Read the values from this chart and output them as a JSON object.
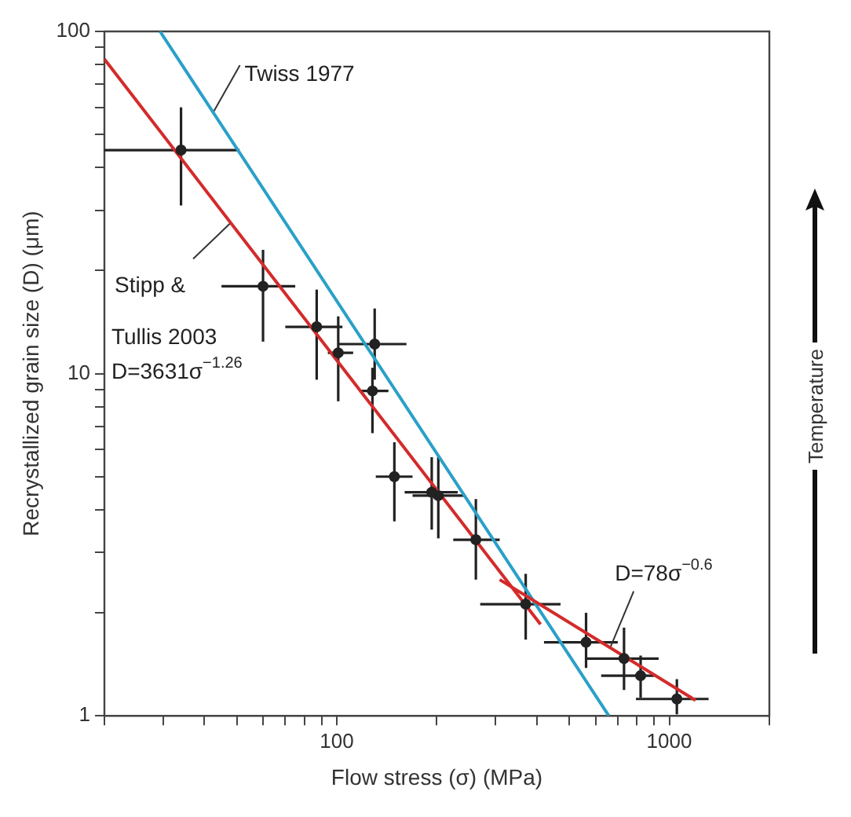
{
  "chart_data": {
    "type": "scatter",
    "xlabel": "Flow stress (σ) (MPa)",
    "ylabel": "Recrystallized grain size (D) (μm)",
    "log": "xy",
    "xlim": [
      20,
      2000
    ],
    "ylim": [
      1,
      100
    ],
    "xticks": [
      {
        "value": 20,
        "label": null
      },
      {
        "value": 30,
        "label": null
      },
      {
        "value": 40,
        "label": null
      },
      {
        "value": 50,
        "label": null
      },
      {
        "value": 60,
        "label": null
      },
      {
        "value": 70,
        "label": null
      },
      {
        "value": 80,
        "label": null
      },
      {
        "value": 90,
        "label": null
      },
      100,
      {
        "value": 200,
        "label": null
      },
      {
        "value": 300,
        "label": null
      },
      {
        "value": 400,
        "label": null
      },
      {
        "value": 500,
        "label": null
      },
      {
        "value": 600,
        "label": null
      },
      {
        "value": 700,
        "label": null
      },
      {
        "value": 800,
        "label": null
      },
      {
        "value": 900,
        "label": null
      },
      1000,
      {
        "value": 2000,
        "label": null
      }
    ],
    "yticks": [
      1,
      {
        "value": 2,
        "label": null
      },
      {
        "value": 3,
        "label": null
      },
      {
        "value": 4,
        "label": null
      },
      {
        "value": 5,
        "label": null
      },
      {
        "value": 6,
        "label": null
      },
      {
        "value": 7,
        "label": null
      },
      {
        "value": 8,
        "label": null
      },
      {
        "value": 9,
        "label": null
      },
      10,
      {
        "value": 20,
        "label": null
      },
      {
        "value": 30,
        "label": null
      },
      {
        "value": 40,
        "label": null
      },
      {
        "value": 50,
        "label": null
      },
      {
        "value": 60,
        "label": null
      },
      {
        "value": 70,
        "label": null
      },
      {
        "value": 80,
        "label": null
      },
      {
        "value": 90,
        "label": null
      },
      100
    ],
    "grid": false,
    "legend": false,
    "series": [
      {
        "marker": "circle",
        "color": "#222222",
        "x": [
          34,
          60,
          87,
          101,
          130,
          128,
          149,
          193,
          202,
          262,
          370,
          562,
          731,
          820,
          1054
        ],
        "values": [
          45,
          18,
          13.7,
          11.5,
          12.2,
          8.9,
          5.0,
          4.5,
          4.4,
          3.27,
          2.12,
          1.64,
          1.47,
          1.31,
          1.12
        ],
        "xerrors": [
          [
            20,
            51
          ],
          [
            45,
            75
          ],
          [
            70,
            104
          ],
          [
            94,
            112
          ],
          [
            101,
            162
          ],
          [
            117,
            143
          ],
          [
            131,
            169
          ],
          [
            160,
            231
          ],
          [
            169,
            243
          ],
          [
            224,
            309
          ],
          [
            270,
            471
          ],
          [
            420,
            700
          ],
          [
            562,
            929
          ],
          [
            624,
            901
          ],
          [
            794,
            1313
          ]
        ],
        "errors": [
          [
            31,
            60
          ],
          [
            12.4,
            23
          ],
          [
            9.6,
            17.6
          ],
          [
            8.3,
            14.7
          ],
          [
            9.6,
            15.5
          ],
          [
            6.7,
            10.4
          ],
          [
            3.7,
            6.3
          ],
          [
            3.5,
            5.7
          ],
          [
            3.3,
            5.7
          ],
          [
            2.5,
            4.3
          ],
          [
            1.67,
            2.6
          ],
          [
            1.38,
            2.0
          ],
          [
            1.19,
            1.81
          ],
          [
            1.13,
            1.5
          ],
          [
            1.01,
            1.28
          ]
        ]
      },
      {
        "type": "line",
        "color": "#d42a2a",
        "x": [
          20,
          410
        ],
        "values": [
          83,
          1.85
        ]
      },
      {
        "type": "line",
        "color": "#d42a2a",
        "x": [
          309,
          1200
        ],
        "values": [
          2.5,
          1.11
        ]
      },
      {
        "type": "line",
        "color": "#2aa0c8",
        "x": [
          29.4,
          658
        ],
        "values": [
          100,
          1
        ]
      }
    ],
    "annotations": [
      {
        "text": "Twiss 1977",
        "x": 42.5,
        "y": 58
      },
      {
        "text": "Stipp &",
        "x": 48,
        "y": 27.6
      },
      "Tullis 2003",
      "D=3631σ$^{−1.26}$",
      {
        "text": "D=78σ$^{−0.6}$",
        "x": 664,
        "y": 1.58
      },
      "Temperature"
    ]
  }
}
